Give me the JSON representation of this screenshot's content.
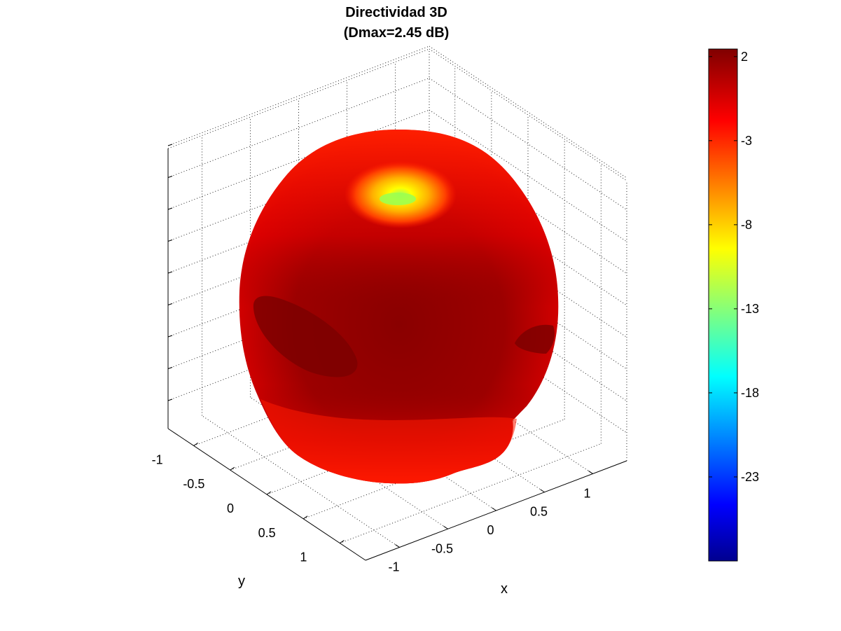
{
  "chart_data": {
    "type": "surface3d",
    "title_lines": [
      "Directividad 3D",
      "(Dmax=2.45 dB)"
    ],
    "xlabel": "x",
    "ylabel": "y",
    "zlabel": "",
    "x_ticks": [
      "-1",
      "-0.5",
      "0",
      "0.5",
      "1"
    ],
    "y_ticks": [
      "-1",
      "-0.5",
      "0",
      "0.5",
      "1"
    ],
    "z_ticks_count": 9,
    "grid": true,
    "dmax_db": 2.45,
    "colorbar": {
      "position": "right",
      "colormap": "jet",
      "range": [
        -28,
        2.45
      ],
      "ticks": [
        "2",
        "-3",
        "-8",
        "-13",
        "-18",
        "-23"
      ],
      "tick_values": [
        2,
        -3,
        -8,
        -13,
        -18,
        -23
      ]
    },
    "surface_colors": {
      "dark_red": "#800000",
      "mid_red": "#b30000",
      "red": "#ff1a00",
      "yellow": "#ffff00",
      "green": "#80ff80"
    }
  }
}
